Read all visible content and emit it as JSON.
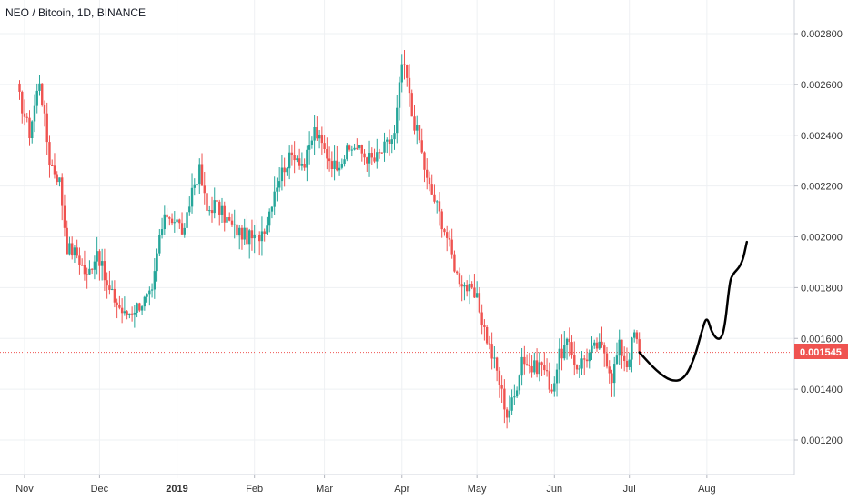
{
  "header": {
    "title": "NEO / Bitcoin, 1D, BINANCE"
  },
  "price_label": "0.001545",
  "colors": {
    "up": "#26a69a",
    "down": "#ef5350",
    "price_line": "#ef5350",
    "drawing": "#000000"
  },
  "chart_data": {
    "type": "candlestick",
    "title": "NEO / Bitcoin, 1D, BINANCE",
    "y_ticks": [
      "0.002800",
      "0.002600",
      "0.002400",
      "0.002200",
      "0.002000",
      "0.001800",
      "0.001600",
      "0.001400",
      "0.001200"
    ],
    "x_ticks": [
      "Nov",
      "Dec",
      "2019",
      "Feb",
      "Mar",
      "Apr",
      "May",
      "Jun",
      "Jul",
      "Aug"
    ],
    "ylim": [
      0.00105,
      0.00295
    ],
    "current_price": 0.001545,
    "grid": true,
    "price_path": [
      [
        "2018-10-29",
        0.00258
      ],
      [
        "2018-11-03",
        0.00241
      ],
      [
        "2018-11-07",
        0.00262
      ],
      [
        "2018-11-11",
        0.0023
      ],
      [
        "2018-11-15",
        0.00222
      ],
      [
        "2018-11-18",
        0.00196
      ],
      [
        "2018-11-22",
        0.00193
      ],
      [
        "2018-11-26",
        0.00184
      ],
      [
        "2018-11-30",
        0.00195
      ],
      [
        "2018-12-04",
        0.0018
      ],
      [
        "2018-12-08",
        0.00174
      ],
      [
        "2018-12-11",
        0.00169
      ],
      [
        "2018-12-15",
        0.00172
      ],
      [
        "2018-12-19",
        0.00175
      ],
      [
        "2018-12-22",
        0.00177
      ],
      [
        "2018-12-25",
        0.002
      ],
      [
        "2018-12-28",
        0.00209
      ],
      [
        "2019-01-01",
        0.00206
      ],
      [
        "2019-01-04",
        0.00201
      ],
      [
        "2019-01-07",
        0.00219
      ],
      [
        "2019-01-10",
        0.00226
      ],
      [
        "2019-01-13",
        0.0021
      ],
      [
        "2019-01-16",
        0.00213
      ],
      [
        "2019-01-20",
        0.00208
      ],
      [
        "2019-01-24",
        0.00203
      ],
      [
        "2019-01-29",
        0.002
      ],
      [
        "2019-02-02",
        0.00199
      ],
      [
        "2019-02-06",
        0.00206
      ],
      [
        "2019-02-09",
        0.00219
      ],
      [
        "2019-02-13",
        0.00228
      ],
      [
        "2019-02-17",
        0.00233
      ],
      [
        "2019-02-21",
        0.00228
      ],
      [
        "2019-02-25",
        0.00242
      ],
      [
        "2019-03-01",
        0.00234
      ],
      [
        "2019-03-05",
        0.00228
      ],
      [
        "2019-03-09",
        0.00232
      ],
      [
        "2019-03-13",
        0.00236
      ],
      [
        "2019-03-17",
        0.00232
      ],
      [
        "2019-03-21",
        0.0023
      ],
      [
        "2019-03-25",
        0.00235
      ],
      [
        "2019-03-29",
        0.0024
      ],
      [
        "2019-04-01",
        0.00268
      ],
      [
        "2019-04-03",
        0.00262
      ],
      [
        "2019-04-05",
        0.00248
      ],
      [
        "2019-04-08",
        0.00238
      ],
      [
        "2019-04-11",
        0.00222
      ],
      [
        "2019-04-15",
        0.00212
      ],
      [
        "2019-04-19",
        0.002
      ],
      [
        "2019-04-23",
        0.00185
      ],
      [
        "2019-04-27",
        0.0018
      ],
      [
        "2019-05-01",
        0.00175
      ],
      [
        "2019-05-05",
        0.0016
      ],
      [
        "2019-05-09",
        0.00147
      ],
      [
        "2019-05-13",
        0.0013
      ],
      [
        "2019-05-16",
        0.00137
      ],
      [
        "2019-05-19",
        0.00153
      ],
      [
        "2019-05-23",
        0.00148
      ],
      [
        "2019-05-27",
        0.0015
      ],
      [
        "2019-05-31",
        0.0014
      ],
      [
        "2019-06-03",
        0.00153
      ],
      [
        "2019-06-06",
        0.00158
      ],
      [
        "2019-06-10",
        0.00149
      ],
      [
        "2019-06-14",
        0.00153
      ],
      [
        "2019-06-18",
        0.00157
      ],
      [
        "2019-06-21",
        0.00155
      ],
      [
        "2019-06-24",
        0.00145
      ],
      [
        "2019-06-27",
        0.00157
      ],
      [
        "2019-06-30",
        0.0015
      ],
      [
        "2019-07-03",
        0.00162
      ],
      [
        "2019-07-05",
        0.001545
      ]
    ],
    "drawing_curve": [
      [
        "2019-07-05",
        0.001545
      ],
      [
        "2019-07-12",
        0.00147
      ],
      [
        "2019-07-18",
        0.00143
      ],
      [
        "2019-07-23",
        0.00144
      ],
      [
        "2019-07-27",
        0.00152
      ],
      [
        "2019-07-30",
        0.00163
      ],
      [
        "2019-08-01",
        0.00169
      ],
      [
        "2019-08-03",
        0.00162
      ],
      [
        "2019-08-06",
        0.00159
      ],
      [
        "2019-08-08",
        0.00163
      ],
      [
        "2019-08-10",
        0.00181
      ],
      [
        "2019-08-11",
        0.00185
      ],
      [
        "2019-08-15",
        0.00189
      ],
      [
        "2019-08-17",
        0.00198
      ]
    ]
  }
}
